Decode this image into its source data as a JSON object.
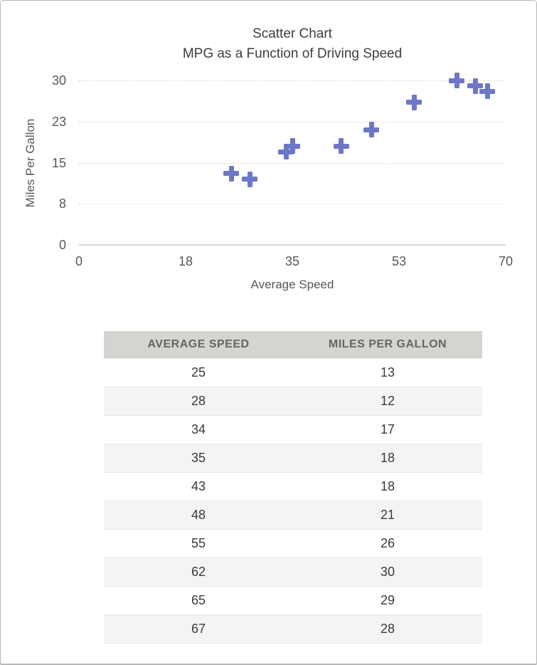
{
  "chart_data": {
    "type": "scatter",
    "title": "Scatter Chart",
    "subtitle": "MPG as a Function of Driving Speed",
    "xlabel": "Average Speed",
    "ylabel": "Miles Per Gallon",
    "xlim": [
      0,
      70
    ],
    "ylim": [
      0,
      30
    ],
    "x_ticks": [
      {
        "value": 0,
        "label": "0"
      },
      {
        "value": 17.5,
        "label": "18"
      },
      {
        "value": 35,
        "label": "35"
      },
      {
        "value": 52.5,
        "label": "53"
      },
      {
        "value": 70,
        "label": "70"
      }
    ],
    "y_ticks": [
      {
        "value": 0,
        "label": "0"
      },
      {
        "value": 7.5,
        "label": "8"
      },
      {
        "value": 15,
        "label": "15"
      },
      {
        "value": 22.5,
        "label": "23"
      },
      {
        "value": 30,
        "label": "30"
      }
    ],
    "points": [
      {
        "x": 25,
        "y": 13
      },
      {
        "x": 28,
        "y": 12
      },
      {
        "x": 34,
        "y": 17
      },
      {
        "x": 35,
        "y": 18
      },
      {
        "x": 43,
        "y": 18
      },
      {
        "x": 48,
        "y": 21
      },
      {
        "x": 55,
        "y": 26
      },
      {
        "x": 62,
        "y": 30
      },
      {
        "x": 65,
        "y": 29
      },
      {
        "x": 67,
        "y": 28
      }
    ],
    "marker": "plus",
    "marker_color": "#6d77c8",
    "grid": "horizontal-dotted",
    "legend": "none"
  },
  "table": {
    "columns": [
      "AVERAGE SPEED",
      "MILES PER GALLON"
    ],
    "rows": [
      [
        "25",
        "13"
      ],
      [
        "28",
        "12"
      ],
      [
        "34",
        "17"
      ],
      [
        "35",
        "18"
      ],
      [
        "43",
        "18"
      ],
      [
        "48",
        "21"
      ],
      [
        "55",
        "26"
      ],
      [
        "62",
        "30"
      ],
      [
        "65",
        "29"
      ],
      [
        "67",
        "28"
      ]
    ]
  }
}
